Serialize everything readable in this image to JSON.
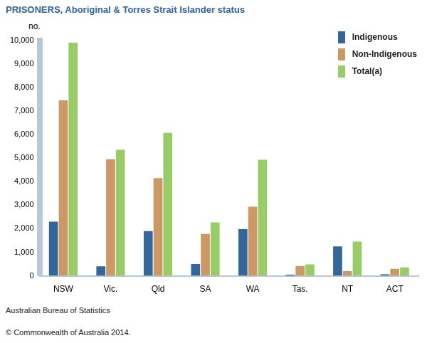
{
  "chart_data": {
    "type": "bar",
    "title": "PRISONERS, Aboriginal & Torres Strait Islander status",
    "y_label": "no.",
    "categories": [
      "NSW",
      "Vic.",
      "Qld",
      "SA",
      "WA",
      "Tas.",
      "NT",
      "ACT"
    ],
    "series": [
      {
        "name": "Indigenous",
        "color": "#336699",
        "values": [
          2300,
          400,
          1900,
          500,
          1980,
          50,
          1250,
          60
        ]
      },
      {
        "name": "Non-Indigenous",
        "color": "#cc9966",
        "values": [
          7450,
          4950,
          4150,
          1780,
          2930,
          420,
          200,
          300
        ]
      },
      {
        "name": "Total(a)",
        "color": "#99cc66",
        "values": [
          9900,
          5350,
          6070,
          2270,
          4930,
          490,
          1450,
          360
        ]
      }
    ],
    "ylim": [
      0,
      10000
    ],
    "yticks": [
      0,
      {
        "value": 1000,
        "label": "1,000"
      },
      {
        "value": 2000,
        "label": "2,000"
      },
      {
        "value": 3000,
        "label": "3,000"
      },
      {
        "value": 4000,
        "label": "4,000"
      },
      {
        "value": 5000,
        "label": "5,000"
      },
      {
        "value": 6000,
        "label": "6,000"
      },
      {
        "value": 7000,
        "label": "7,000"
      },
      {
        "value": 8000,
        "label": "8,000"
      },
      {
        "value": 9000,
        "label": "9,000"
      },
      {
        "value": 10000,
        "label": "10,000"
      }
    ],
    "grid": false,
    "legend": "top-right",
    "annotations": [
      "Australian Bureau of Statistics",
      "© Commonwealth of Australia 2014."
    ]
  }
}
